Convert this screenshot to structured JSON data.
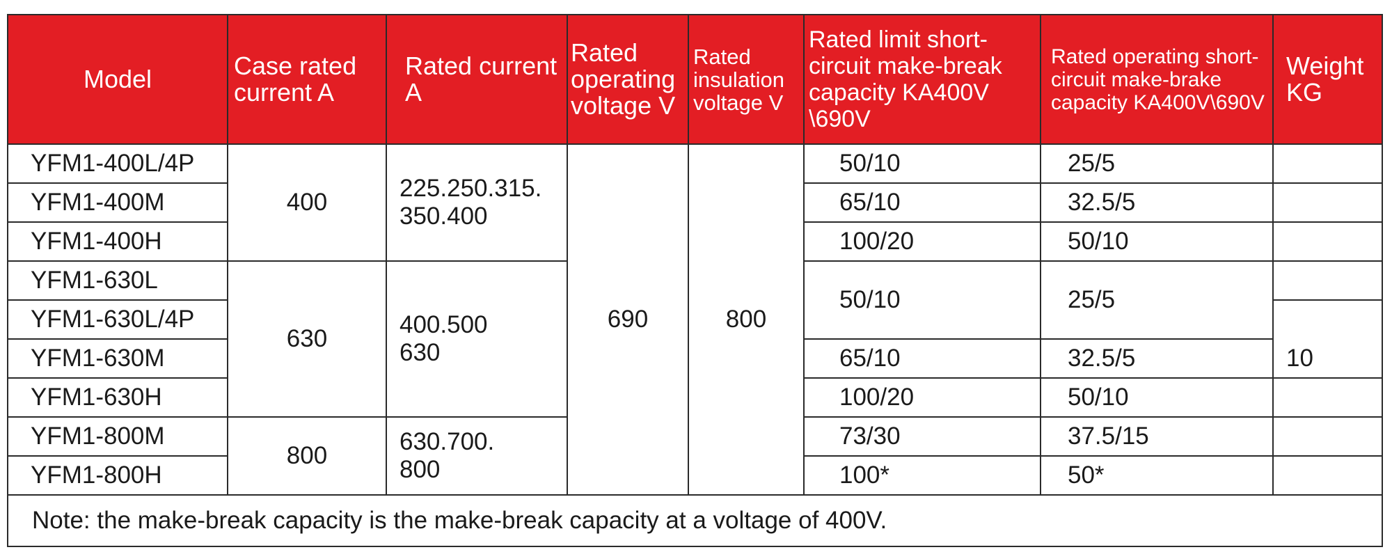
{
  "headers": {
    "model": "Model",
    "case_rated_current": "Case rated current A",
    "rated_current": "Rated current A",
    "rated_operating_voltage": "Rated operating voltage V",
    "rated_insulation_voltage": "Rated insulation voltage V",
    "rated_limit_capacity": "Rated limit short-circuit make-break capacity KA400V \\690V",
    "rated_operating_capacity": "Rated operating short-circuit make-brake capacity KA400V\\690V",
    "weight": "Weight KG"
  },
  "models": [
    "YFM1-400L/4P",
    "YFM1-400M",
    "YFM1-400H",
    "YFM1-630L",
    "YFM1-630L/4P",
    "YFM1-630M",
    "YFM1-630H",
    "YFM1-800M",
    "YFM1-800H"
  ],
  "case_rated_current": [
    "400",
    "630",
    "800"
  ],
  "rated_current": [
    [
      "225.250.315.",
      "350.400"
    ],
    [
      "400.500",
      "630"
    ],
    [
      "630.700.",
      "800"
    ]
  ],
  "rated_operating_voltage": "690",
  "rated_insulation_voltage": "800",
  "limit_capacity": [
    "50/10",
    "65/10",
    "100/20",
    "50/10",
    "65/10",
    "100/20",
    "73/30",
    "100*"
  ],
  "operating_capacity": [
    "25/5",
    "32.5/5",
    "50/10",
    "25/5",
    "32.5/5",
    "50/10",
    "37.5/15",
    "50*"
  ],
  "weight": "10",
  "note": "Note: the make-break capacity is the make-break capacity at a voltage of 400V."
}
